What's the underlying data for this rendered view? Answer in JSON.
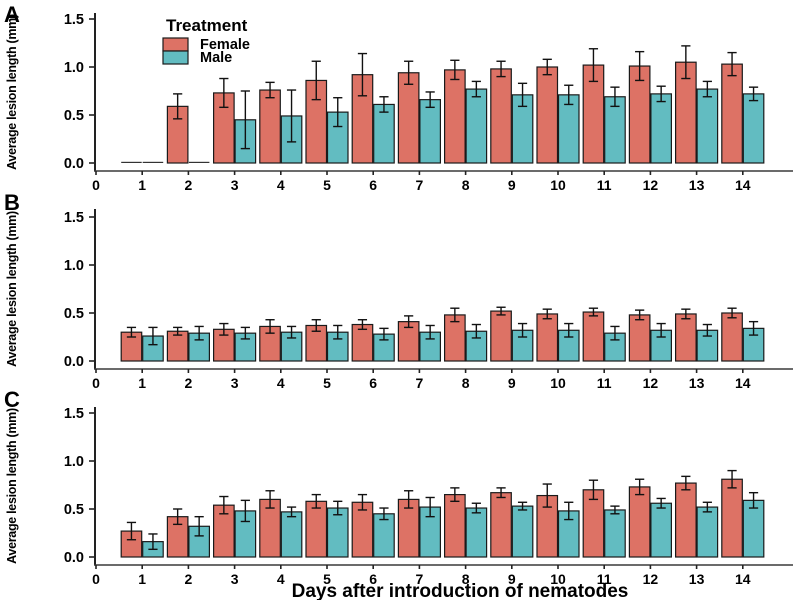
{
  "figure": {
    "y_axis_label": "Average lesion length (mm)",
    "x_axis_title": "Days after introduction of nematodes",
    "legend": {
      "title": "Treatment",
      "entries": [
        {
          "label": "Female",
          "color": "#DD7265"
        },
        {
          "label": "Male",
          "color": "#62BCC1"
        }
      ]
    },
    "colors": {
      "female": "#DD7265",
      "male": "#62BCC1",
      "bar_outline": "#1a1a1a",
      "axis": "#222222",
      "error_bar": "#111111",
      "background": "#ffffff"
    }
  },
  "chart_data": [
    {
      "type": "bar",
      "panel": "A",
      "ylabel": "Average lesion length (mm)",
      "ylim": [
        0,
        1.5
      ],
      "yticks": [
        "0.0",
        "0.5",
        "1.0",
        "1.5"
      ],
      "xticks": [
        "0",
        "1",
        "2",
        "3",
        "4",
        "5",
        "6",
        "7",
        "8",
        "9",
        "10",
        "11",
        "12",
        "13",
        "14"
      ],
      "categories": [
        1,
        2,
        3,
        4,
        5,
        6,
        7,
        8,
        9,
        10,
        11,
        12,
        13,
        14
      ],
      "legend_visible": true,
      "series": [
        {
          "name": "Female",
          "color": "#DD7265",
          "values": [
            0,
            0.59,
            0.73,
            0.76,
            0.86,
            0.92,
            0.94,
            0.97,
            0.98,
            1.0,
            1.02,
            1.01,
            1.05,
            1.03
          ],
          "errors": [
            null,
            0.13,
            0.15,
            0.08,
            0.2,
            0.22,
            0.12,
            0.1,
            0.08,
            0.08,
            0.17,
            0.15,
            0.17,
            0.12
          ]
        },
        {
          "name": "Male",
          "color": "#62BCC1",
          "values": [
            0,
            0,
            0.45,
            0.49,
            0.53,
            0.61,
            0.66,
            0.77,
            0.71,
            0.71,
            0.69,
            0.72,
            0.77,
            0.72
          ],
          "errors": [
            null,
            null,
            0.3,
            0.27,
            0.15,
            0.08,
            0.08,
            0.08,
            0.12,
            0.1,
            0.1,
            0.08,
            0.08,
            0.07
          ]
        }
      ]
    },
    {
      "type": "bar",
      "panel": "B",
      "ylabel": "Average lesion length (mm)",
      "ylim": [
        0,
        1.5
      ],
      "yticks": [
        "0.0",
        "0.5",
        "1.0",
        "1.5"
      ],
      "xticks": [
        "0",
        "1",
        "2",
        "3",
        "4",
        "5",
        "6",
        "7",
        "8",
        "9",
        "10",
        "11",
        "12",
        "13",
        "14"
      ],
      "categories": [
        1,
        2,
        3,
        4,
        5,
        6,
        7,
        8,
        9,
        10,
        11,
        12,
        13,
        14
      ],
      "legend_visible": false,
      "series": [
        {
          "name": "Female",
          "color": "#DD7265",
          "values": [
            0.3,
            0.31,
            0.33,
            0.36,
            0.37,
            0.38,
            0.41,
            0.48,
            0.52,
            0.49,
            0.51,
            0.48,
            0.49,
            0.5
          ],
          "errors": [
            0.05,
            0.04,
            0.06,
            0.07,
            0.06,
            0.05,
            0.06,
            0.07,
            0.04,
            0.05,
            0.04,
            0.05,
            0.05,
            0.05
          ]
        },
        {
          "name": "Male",
          "color": "#62BCC1",
          "values": [
            0.26,
            0.29,
            0.29,
            0.3,
            0.3,
            0.28,
            0.3,
            0.31,
            0.32,
            0.32,
            0.29,
            0.32,
            0.32,
            0.34
          ],
          "errors": [
            0.09,
            0.07,
            0.06,
            0.06,
            0.07,
            0.06,
            0.07,
            0.07,
            0.07,
            0.07,
            0.07,
            0.07,
            0.06,
            0.07
          ]
        }
      ]
    },
    {
      "type": "bar",
      "panel": "C",
      "ylabel": "Average lesion length (mm)",
      "xlabel": "Days after introduction of nematodes",
      "ylim": [
        0,
        1.5
      ],
      "yticks": [
        "0.0",
        "0.5",
        "1.0",
        "1.5"
      ],
      "xticks": [
        "0",
        "1",
        "2",
        "3",
        "4",
        "5",
        "6",
        "7",
        "8",
        "9",
        "10",
        "11",
        "12",
        "13",
        "14"
      ],
      "categories": [
        1,
        2,
        3,
        4,
        5,
        6,
        7,
        8,
        9,
        10,
        11,
        12,
        13,
        14
      ],
      "legend_visible": false,
      "series": [
        {
          "name": "Female",
          "color": "#DD7265",
          "values": [
            0.27,
            0.42,
            0.54,
            0.6,
            0.58,
            0.57,
            0.6,
            0.65,
            0.67,
            0.64,
            0.7,
            0.73,
            0.77,
            0.81
          ],
          "errors": [
            0.09,
            0.08,
            0.09,
            0.09,
            0.07,
            0.08,
            0.09,
            0.07,
            0.05,
            0.12,
            0.1,
            0.08,
            0.07,
            0.09
          ]
        },
        {
          "name": "Male",
          "color": "#62BCC1",
          "values": [
            0.16,
            0.32,
            0.48,
            0.47,
            0.51,
            0.45,
            0.52,
            0.51,
            0.53,
            0.48,
            0.49,
            0.56,
            0.52,
            0.59
          ],
          "errors": [
            0.08,
            0.1,
            0.11,
            0.05,
            0.07,
            0.06,
            0.1,
            0.05,
            0.04,
            0.09,
            0.04,
            0.05,
            0.05,
            0.08
          ]
        }
      ]
    }
  ]
}
